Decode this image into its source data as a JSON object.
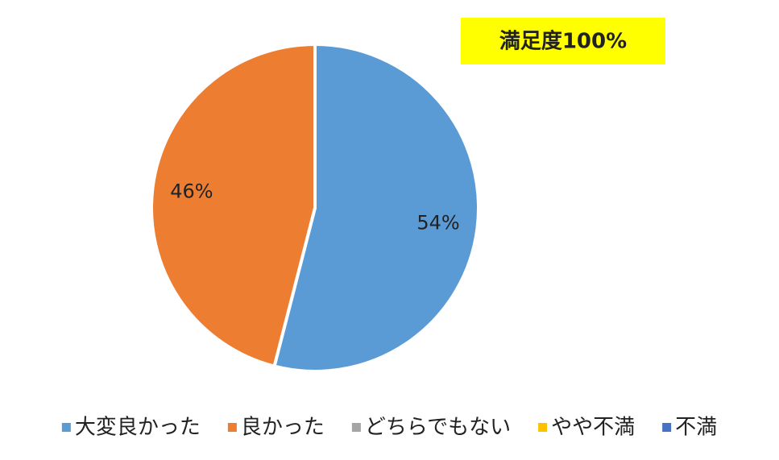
{
  "chart_data": {
    "type": "pie",
    "annotation": "満足度100%",
    "categories": [
      "大変良かった",
      "良かった",
      "どちらでもない",
      "やや不満",
      "不満"
    ],
    "values": [
      54,
      46,
      0,
      0,
      0
    ],
    "value_labels": [
      "54%",
      "46%",
      null,
      null,
      null
    ],
    "colors": [
      "#5b9bd5",
      "#ed7d31",
      "#a5a5a5",
      "#ffc000",
      "#4472c4"
    ],
    "legend": "bottom"
  }
}
